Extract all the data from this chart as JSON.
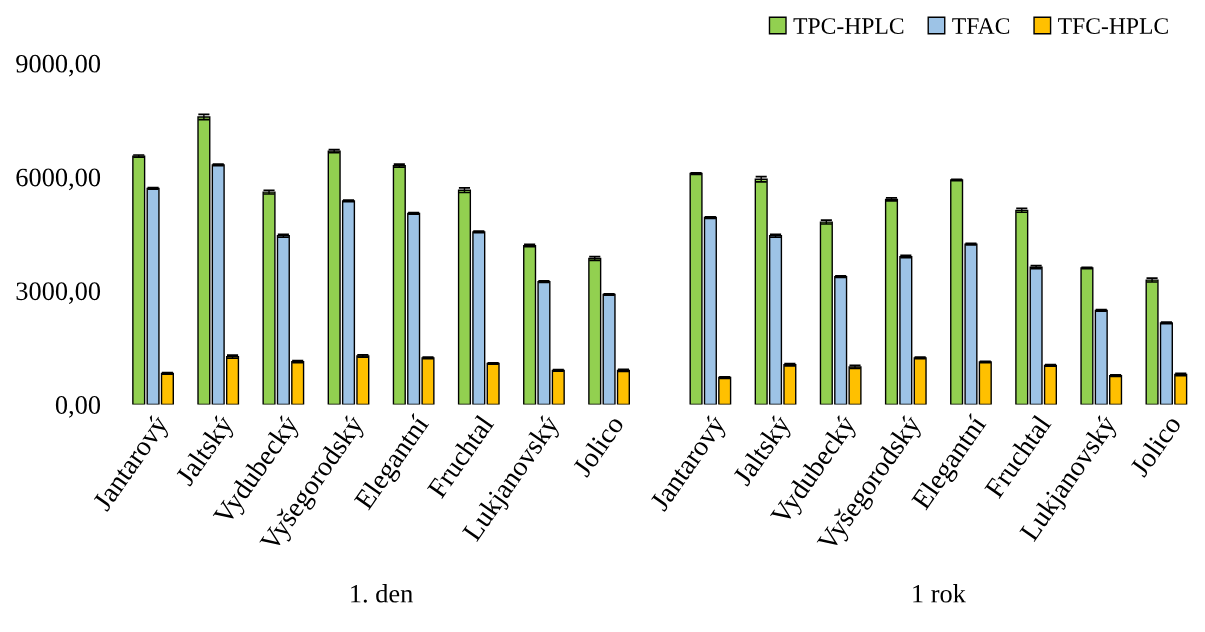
{
  "chart_data": [
    {
      "type": "bar",
      "xlabel": "1. den",
      "categories": [
        "Jantarový",
        "Jaltský",
        "Vydubecký",
        "Vyšegorodský",
        "Elegantní",
        "Fruchtal",
        "Lukjanovský",
        "Jolico"
      ],
      "ylim": [
        0,
        9000
      ],
      "yticks": [
        {
          "value": 0,
          "label": "0,00"
        },
        {
          "value": 3000,
          "label": "3000,00"
        },
        {
          "value": 6000,
          "label": "6000,00"
        },
        {
          "value": 9000,
          "label": "9000,00"
        }
      ],
      "grid": false,
      "series": [
        {
          "color": "#92d050",
          "values": [
            6550,
            7580,
            5600,
            6680,
            6300,
            5650,
            4190,
            3850
          ],
          "errors": [
            30,
            70,
            50,
            40,
            40,
            60,
            30,
            50
          ]
        },
        {
          "color": "#9dc3e6",
          "values": [
            5700,
            6320,
            4450,
            5370,
            5040,
            4550,
            3240,
            2900
          ],
          "errors": [
            20,
            20,
            40,
            20,
            20,
            20,
            20,
            20
          ]
        },
        {
          "color": "#ffc000",
          "values": [
            820,
            1260,
            1130,
            1280,
            1230,
            1080,
            900,
            900
          ],
          "errors": [
            20,
            40,
            30,
            30,
            20,
            20,
            20,
            30
          ]
        }
      ]
    },
    {
      "type": "bar",
      "xlabel": "1 rok",
      "categories": [
        "Jantarový",
        "Jaltský",
        "Vydubecký",
        "Vyšegorodský",
        "Elegantní",
        "Fruchtal",
        "Lukjanovský",
        "Jolico"
      ],
      "ylim": [
        0,
        9000
      ],
      "tick_labels": "x",
      "grid": false,
      "legend": "top right",
      "series": [
        {
          "name": "TPC-HPLC",
          "color": "#92d050",
          "values": [
            6090,
            5940,
            4810,
            5410,
            5920,
            5120,
            3600,
            3280
          ],
          "errors": [
            20,
            70,
            50,
            40,
            20,
            50,
            20,
            50
          ]
        },
        {
          "name": "TFAC",
          "color": "#9dc3e6",
          "values": [
            4930,
            4450,
            3370,
            3900,
            4230,
            3620,
            2480,
            2150
          ],
          "errors": [
            20,
            40,
            20,
            30,
            20,
            40,
            20,
            20
          ]
        },
        {
          "name": "TFC-HPLC",
          "color": "#ffc000",
          "values": [
            710,
            1050,
            990,
            1230,
            1120,
            1030,
            760,
            790
          ],
          "errors": [
            20,
            30,
            40,
            20,
            20,
            20,
            20,
            30
          ]
        }
      ]
    }
  ]
}
